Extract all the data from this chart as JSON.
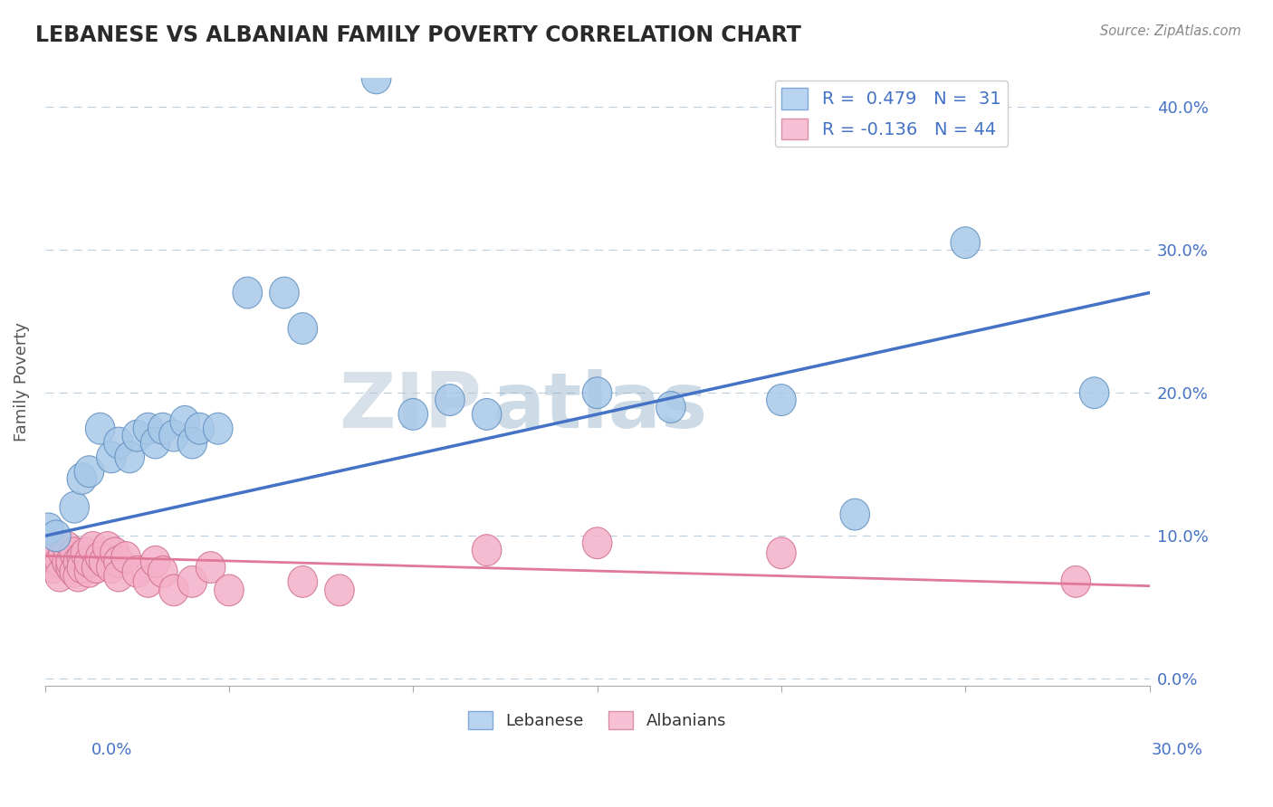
{
  "title": "LEBANESE VS ALBANIAN FAMILY POVERTY CORRELATION CHART",
  "source": "Source: ZipAtlas.com",
  "ylabel": "Family Poverty",
  "xlim": [
    0.0,
    0.3
  ],
  "ylim": [
    -0.005,
    0.42
  ],
  "yticks": [
    0.0,
    0.1,
    0.2,
    0.3,
    0.4
  ],
  "ytick_labels": [
    "0.0%",
    "10.0%",
    "20.0%",
    "30.0%",
    "40.0%"
  ],
  "xtick_left": "0.0%",
  "xtick_right": "30.0%",
  "watermark_part1": "ZIP",
  "watermark_part2": "atlas",
  "lebanese_color": "#a8c8e8",
  "lebanese_edge": "#6090c0",
  "albanian_color": "#f4b0c8",
  "albanian_edge": "#d07090",
  "trendline_leb_color": "#4472c4",
  "trendline_alb_color": "#e07898",
  "legend_leb_label": "R =  0.479   N =  31",
  "legend_alb_label": "R = -0.136   N = 44",
  "bottom_leb_label": "Lebanese",
  "bottom_alb_label": "Albanians",
  "lebanese_points": [
    [
      0.001,
      0.105
    ],
    [
      0.003,
      0.1
    ],
    [
      0.008,
      0.12
    ],
    [
      0.01,
      0.14
    ],
    [
      0.012,
      0.145
    ],
    [
      0.015,
      0.175
    ],
    [
      0.018,
      0.155
    ],
    [
      0.02,
      0.165
    ],
    [
      0.023,
      0.155
    ],
    [
      0.025,
      0.17
    ],
    [
      0.028,
      0.175
    ],
    [
      0.03,
      0.165
    ],
    [
      0.032,
      0.175
    ],
    [
      0.035,
      0.17
    ],
    [
      0.038,
      0.18
    ],
    [
      0.04,
      0.165
    ],
    [
      0.042,
      0.175
    ],
    [
      0.047,
      0.175
    ],
    [
      0.055,
      0.27
    ],
    [
      0.065,
      0.27
    ],
    [
      0.07,
      0.245
    ],
    [
      0.09,
      0.42
    ],
    [
      0.1,
      0.185
    ],
    [
      0.11,
      0.195
    ],
    [
      0.12,
      0.185
    ],
    [
      0.15,
      0.2
    ],
    [
      0.17,
      0.19
    ],
    [
      0.2,
      0.195
    ],
    [
      0.22,
      0.115
    ],
    [
      0.25,
      0.305
    ],
    [
      0.285,
      0.2
    ]
  ],
  "albanian_points": [
    [
      0.001,
      0.082
    ],
    [
      0.002,
      0.092
    ],
    [
      0.002,
      0.078
    ],
    [
      0.003,
      0.088
    ],
    [
      0.004,
      0.082
    ],
    [
      0.004,
      0.072
    ],
    [
      0.005,
      0.088
    ],
    [
      0.006,
      0.082
    ],
    [
      0.006,
      0.092
    ],
    [
      0.007,
      0.078
    ],
    [
      0.007,
      0.082
    ],
    [
      0.008,
      0.088
    ],
    [
      0.008,
      0.075
    ],
    [
      0.009,
      0.082
    ],
    [
      0.009,
      0.072
    ],
    [
      0.01,
      0.085
    ],
    [
      0.01,
      0.078
    ],
    [
      0.011,
      0.088
    ],
    [
      0.012,
      0.075
    ],
    [
      0.012,
      0.082
    ],
    [
      0.013,
      0.092
    ],
    [
      0.014,
      0.078
    ],
    [
      0.015,
      0.085
    ],
    [
      0.016,
      0.082
    ],
    [
      0.017,
      0.092
    ],
    [
      0.018,
      0.078
    ],
    [
      0.019,
      0.088
    ],
    [
      0.02,
      0.082
    ],
    [
      0.02,
      0.072
    ],
    [
      0.022,
      0.085
    ],
    [
      0.025,
      0.075
    ],
    [
      0.028,
      0.068
    ],
    [
      0.03,
      0.082
    ],
    [
      0.032,
      0.075
    ],
    [
      0.035,
      0.062
    ],
    [
      0.04,
      0.068
    ],
    [
      0.045,
      0.078
    ],
    [
      0.05,
      0.062
    ],
    [
      0.07,
      0.068
    ],
    [
      0.08,
      0.062
    ],
    [
      0.12,
      0.09
    ],
    [
      0.15,
      0.095
    ],
    [
      0.2,
      0.088
    ],
    [
      0.28,
      0.068
    ]
  ],
  "leb_trend_x0": 0.0,
  "leb_trend_y0": 0.1,
  "leb_trend_x1": 0.3,
  "leb_trend_y1": 0.27,
  "alb_trend_x0": 0.0,
  "alb_trend_y0": 0.086,
  "alb_trend_x1": 0.3,
  "alb_trend_y1": 0.065
}
